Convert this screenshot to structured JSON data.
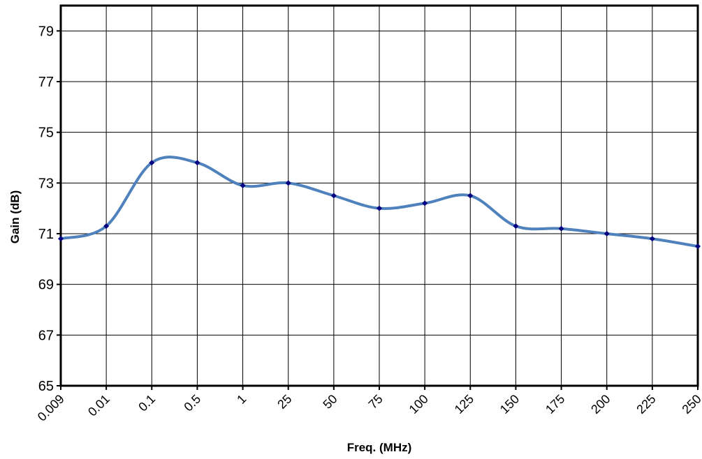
{
  "chart_data": {
    "type": "line",
    "title": "",
    "xlabel": "Freq. (MHz)",
    "ylabel": "Gain (dB)",
    "categories": [
      "0.009",
      "0.01",
      "0.1",
      "0.5",
      "1",
      "25",
      "50",
      "75",
      "100",
      "125",
      "150",
      "175",
      "200",
      "225",
      "250"
    ],
    "series": [
      {
        "name": "",
        "values": [
          70.8,
          71.3,
          73.8,
          73.8,
          72.9,
          73.0,
          72.5,
          72.0,
          72.2,
          72.5,
          71.3,
          71.2,
          71.0,
          70.8,
          70.5
        ]
      }
    ],
    "ylim": [
      65,
      80
    ],
    "yticks": [
      65,
      67,
      69,
      71,
      73,
      75,
      77,
      79
    ],
    "grid": true,
    "legend": "none",
    "line_color": "#4F81BD",
    "marker_color": "#000080"
  }
}
